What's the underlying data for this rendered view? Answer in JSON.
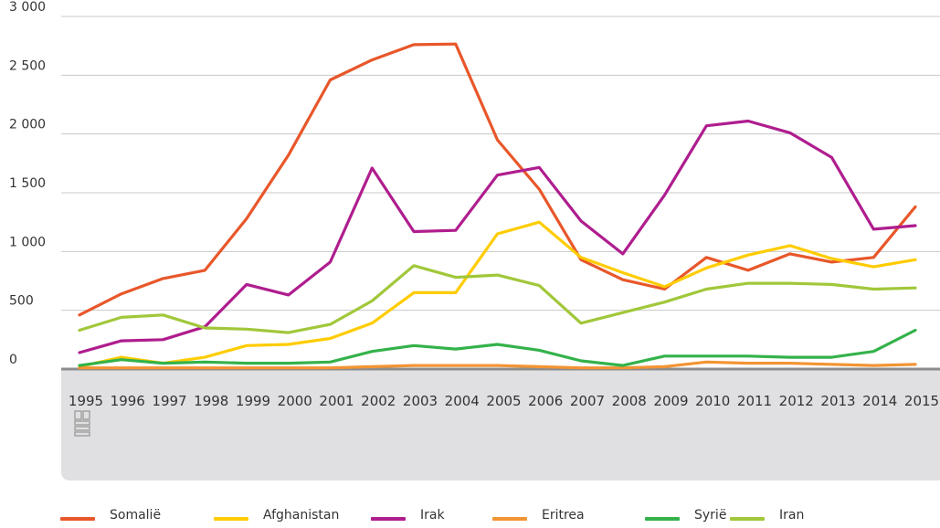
{
  "chart_data": {
    "type": "line",
    "categories": [
      "1995",
      "1996",
      "1997",
      "1998",
      "1999",
      "2000",
      "2001",
      "2002",
      "2003",
      "2004",
      "2005",
      "2006",
      "2007",
      "2008",
      "2009",
      "2010",
      "2011",
      "2012",
      "2013",
      "2014",
      "2015"
    ],
    "ylim": [
      0,
      3000
    ],
    "yticks": [
      0,
      500,
      1000,
      1500,
      2000,
      2500,
      3000
    ],
    "ytick_labels": [
      "0",
      "500",
      "1 000",
      "1 500",
      "2 000",
      "2 500",
      "3 000"
    ],
    "grid": true,
    "legend_position": "bottom",
    "series": [
      {
        "name": "Somalië",
        "color": "#e8572a",
        "values": [
          460,
          640,
          770,
          840,
          1280,
          1820,
          2460,
          2630,
          2760,
          2765,
          1950,
          1530,
          930,
          760,
          680,
          950,
          840,
          980,
          910,
          950,
          1380
        ]
      },
      {
        "name": "Afghanistan",
        "color": "#ffcc00",
        "values": [
          20,
          100,
          50,
          100,
          200,
          210,
          260,
          390,
          650,
          650,
          1150,
          1250,
          950,
          820,
          700,
          860,
          970,
          1050,
          940,
          870,
          930
        ]
      },
      {
        "name": "Irak",
        "color": "#af1d8e",
        "values": [
          140,
          240,
          250,
          360,
          720,
          630,
          910,
          1710,
          1170,
          1180,
          1650,
          1715,
          1260,
          980,
          1480,
          2070,
          2110,
          2010,
          1800,
          1190,
          1220
        ]
      },
      {
        "name": "Eritrea",
        "color": "#f39433",
        "values": [
          10,
          10,
          10,
          10,
          10,
          10,
          10,
          20,
          30,
          30,
          30,
          20,
          10,
          10,
          20,
          60,
          50,
          50,
          40,
          30,
          40
        ]
      },
      {
        "name": "Syrië",
        "color": "#34b24a",
        "values": [
          30,
          80,
          50,
          60,
          50,
          50,
          60,
          150,
          200,
          170,
          210,
          160,
          70,
          30,
          110,
          110,
          110,
          100,
          100,
          150,
          330
        ]
      },
      {
        "name": "Iran",
        "color": "#a1c73a",
        "values": [
          330,
          440,
          460,
          350,
          340,
          310,
          380,
          580,
          880,
          780,
          800,
          710,
          390,
          480,
          570,
          680,
          730,
          730,
          720,
          680,
          690
        ]
      }
    ]
  },
  "logo_icon": "cbs-logo-icon"
}
